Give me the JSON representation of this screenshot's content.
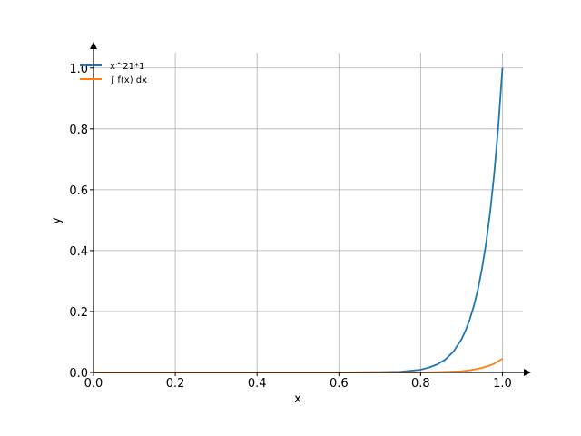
{
  "chart_data": {
    "type": "line",
    "title": "",
    "xlabel": "x",
    "ylabel": "y",
    "xlim": [
      0,
      1.05
    ],
    "ylim": [
      0,
      1.05
    ],
    "grid": true,
    "legend_position": "top-left",
    "x_ticks": [
      0.0,
      0.2,
      0.4,
      0.6,
      0.8,
      1.0
    ],
    "x_tick_labels": [
      "0.0",
      "0.2",
      "0.4",
      "0.6",
      "0.8",
      "1.0"
    ],
    "y_ticks": [
      0.0,
      0.2,
      0.4,
      0.6,
      0.8,
      1.0
    ],
    "y_tick_labels": [
      "0.0",
      "0.2",
      "0.4",
      "0.6",
      "0.8",
      "1.0"
    ],
    "series": [
      {
        "name": "x^21*1",
        "color": "#1f77b4",
        "x": [
          0.0,
          0.5,
          0.6,
          0.7,
          0.75,
          0.8,
          0.82,
          0.84,
          0.86,
          0.88,
          0.9,
          0.91,
          0.92,
          0.93,
          0.94,
          0.95,
          0.96,
          0.97,
          0.98,
          0.99,
          1.0
        ],
        "y": [
          0.0,
          0.0,
          0.0,
          0.001,
          0.002,
          0.009,
          0.016,
          0.026,
          0.042,
          0.068,
          0.109,
          0.138,
          0.174,
          0.218,
          0.272,
          0.341,
          0.424,
          0.527,
          0.654,
          0.81,
          1.0
        ]
      },
      {
        "name": "∫ f(x) dx",
        "color": "#ff7f0e",
        "x": [
          0.0,
          0.7,
          0.8,
          0.84,
          0.88,
          0.9,
          0.92,
          0.94,
          0.95,
          0.96,
          0.97,
          0.98,
          0.99,
          1.0
        ],
        "y": [
          0.0,
          0.0,
          0.0,
          0.001,
          0.003,
          0.004,
          0.007,
          0.012,
          0.015,
          0.019,
          0.023,
          0.029,
          0.037,
          0.045
        ]
      }
    ]
  }
}
